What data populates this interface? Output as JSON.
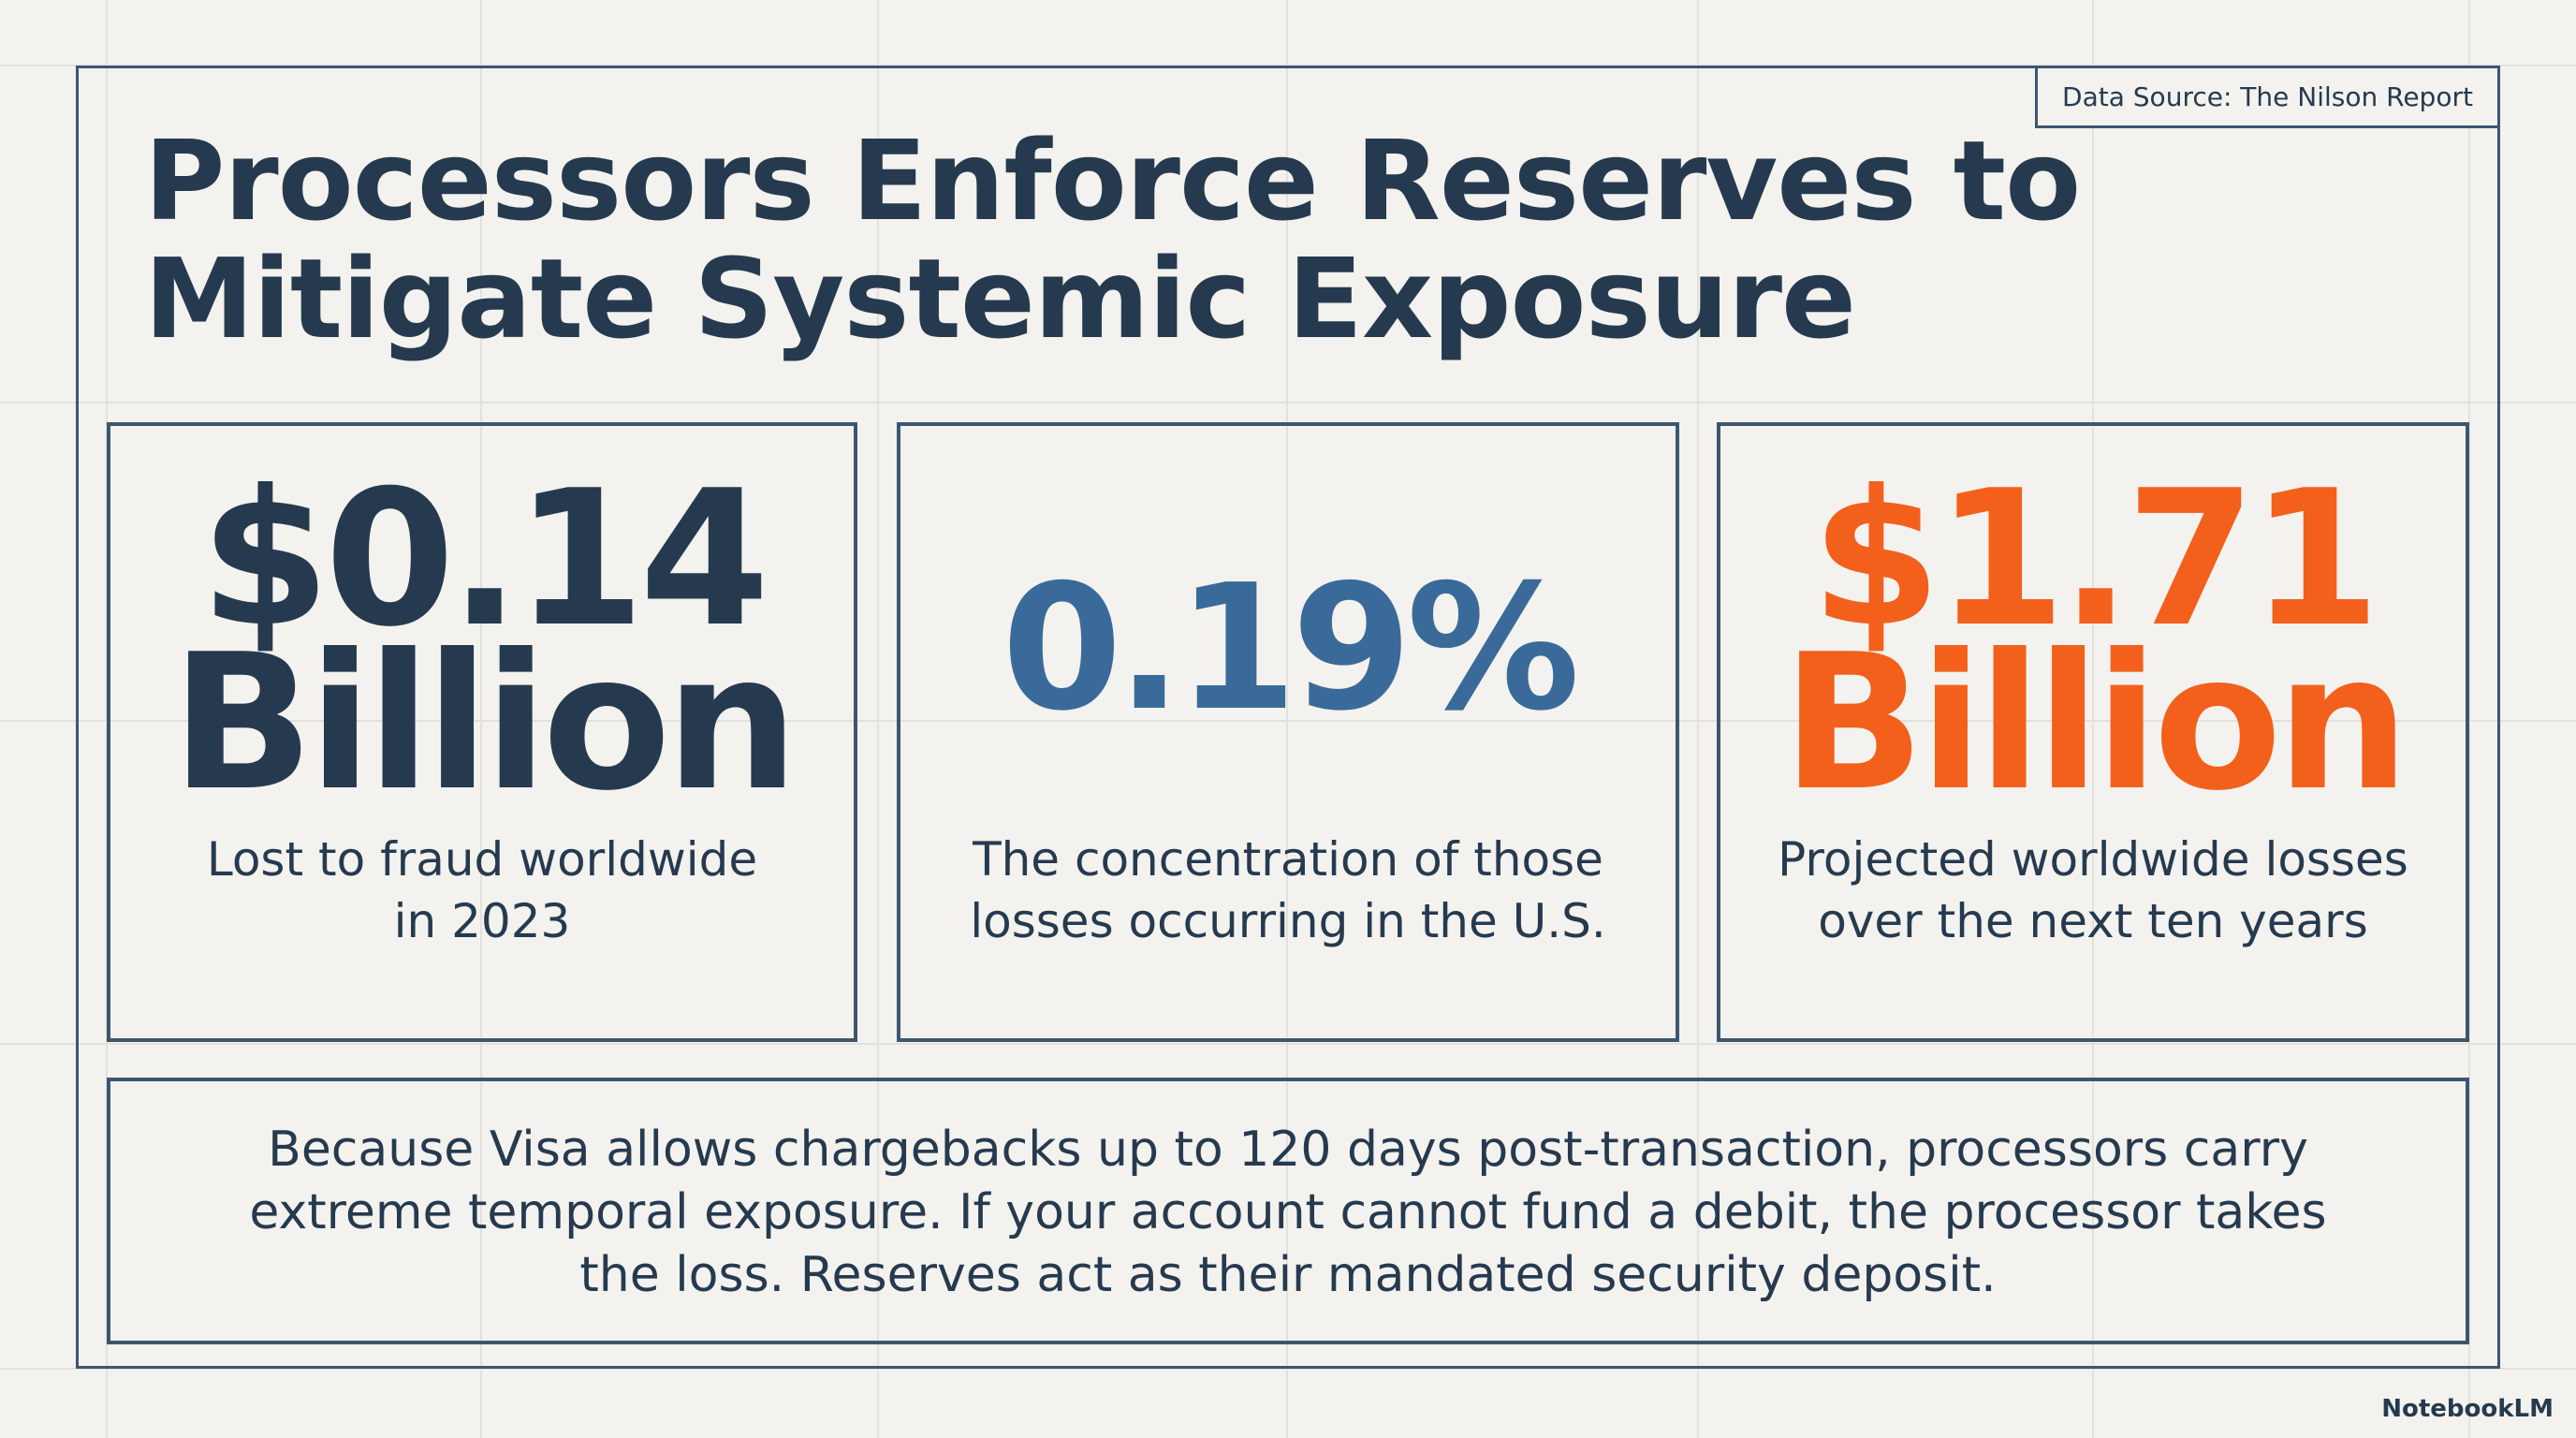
{
  "source": "Data Source: The Nilson Report",
  "title": [
    "Processors Enforce Reserves to",
    "Mitigate Systemic Exposure"
  ],
  "stats": [
    {
      "value": [
        "$0.14",
        "Billion"
      ],
      "caption": [
        "Lost to fraud worldwide",
        "in 2023"
      ]
    },
    {
      "value": [
        "0.19%"
      ],
      "caption": [
        "The concentration of those",
        "losses occurring in the U.S."
      ]
    },
    {
      "value": [
        "$1.71",
        "Billion"
      ],
      "caption": [
        "Projected worldwide losses",
        "over the next ten years"
      ]
    }
  ],
  "note": [
    "Because Visa allows chargebacks up to 120 days post-transaction, processors carry",
    "extreme temporal exposure. If your account cannot fund a debit, the processor takes",
    "the loss. Reserves act as their mandated security deposit."
  ],
  "brand": "NotebookLM"
}
